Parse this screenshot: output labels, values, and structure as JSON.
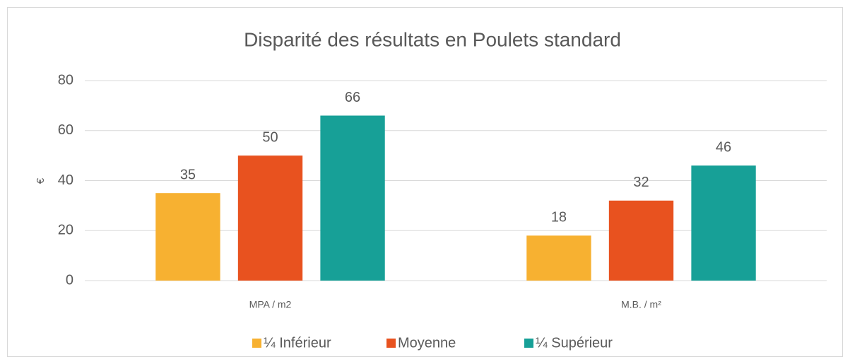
{
  "chart_data": {
    "type": "bar",
    "title": "Disparité des résultats en Poulets standard",
    "y_label": "€",
    "categories": [
      "MPA / m2",
      "M.B. / m²"
    ],
    "series": [
      {
        "name": "¼ Inférieur",
        "color": "#f7b131",
        "values": [
          35,
          18
        ]
      },
      {
        "name": "Moyenne",
        "color": "#e8521f",
        "values": [
          50,
          32
        ]
      },
      {
        "name": "¼ Supérieur",
        "color": "#17a097",
        "values": [
          66,
          46
        ]
      }
    ],
    "ylim": [
      0,
      80
    ],
    "yticks": [
      0,
      20,
      40,
      60,
      80
    ],
    "grid": true,
    "legend": "bottom"
  }
}
